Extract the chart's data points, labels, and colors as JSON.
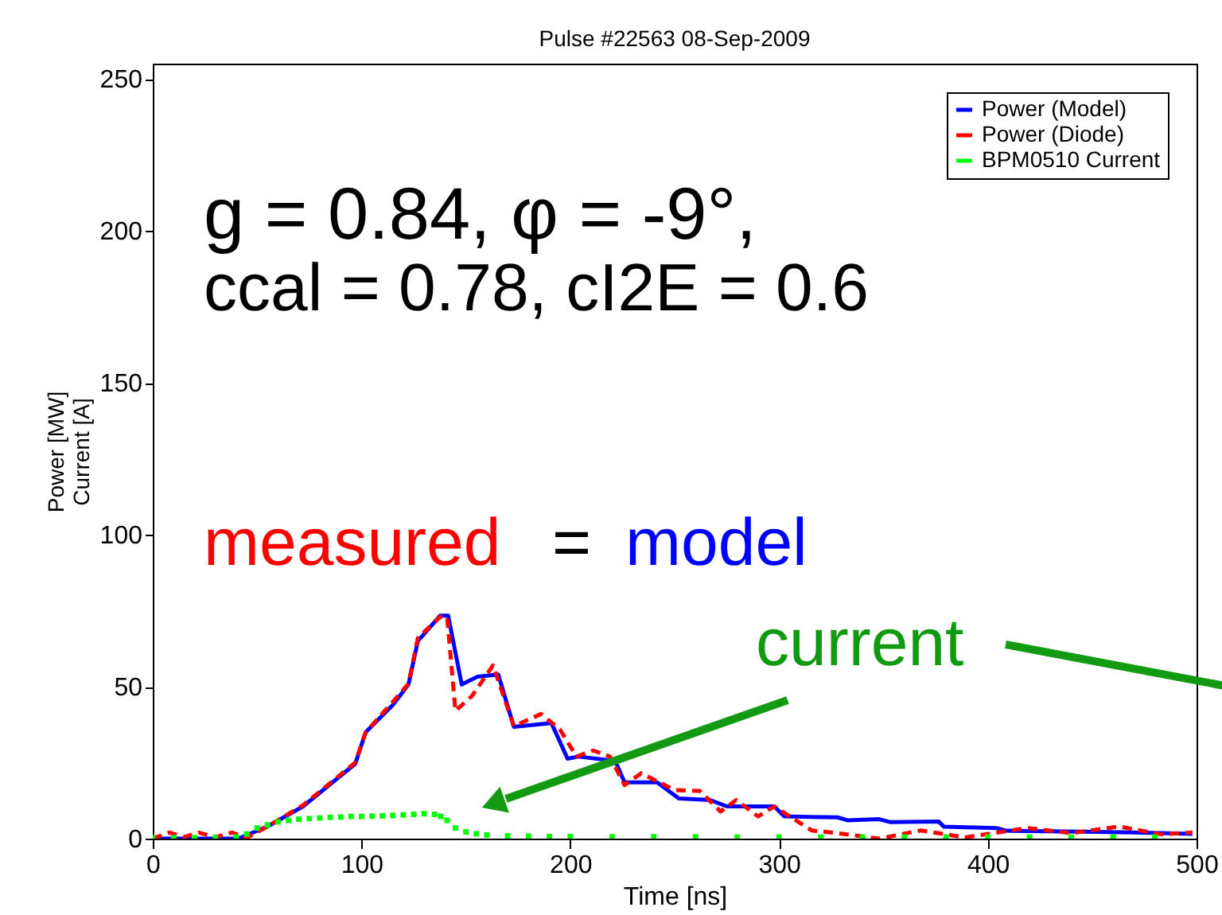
{
  "chart_data": {
    "type": "line",
    "title": "Pulse #22563 08-Sep-2009",
    "xlabel": "Time [ns]",
    "ylabel": "Power [MW]\nCurrent [A]",
    "xlim": [
      0,
      500
    ],
    "xticks": [
      0,
      100,
      200,
      300,
      400,
      500
    ],
    "ylim": [
      0,
      255
    ],
    "yticks": [
      0,
      50,
      100,
      150,
      200,
      250
    ],
    "grid": false,
    "legend": "top right",
    "marker": "none",
    "annotations": [
      "g = 0.84, φ = -9°,",
      "ccal = 0.78, cI2E = 0.6",
      "measured",
      "=",
      "model",
      "current"
    ],
    "series": [
      {
        "name": "Power (Model)",
        "color": "#0000ff",
        "line_style": "solid",
        "x": [
          0,
          41,
          55,
          72,
          97,
          102,
          115,
          122.5,
          127,
          137.7,
          141.5,
          148,
          155.5,
          165.5,
          173,
          191,
          198.7,
          204,
          221.5,
          226,
          241.6,
          252,
          267,
          275,
          297.7,
          302.6,
          328,
          333,
          348,
          353.5,
          376.5,
          379,
          404,
          409,
          445,
          470,
          498
        ],
        "values": [
          0,
          0,
          4,
          10.6,
          24.6,
          35,
          44,
          50.7,
          65,
          73.4,
          73.4,
          50.7,
          53.3,
          54,
          36.8,
          38,
          26.3,
          27,
          25.6,
          18.5,
          18.5,
          13.2,
          12.7,
          10.6,
          10.6,
          7.3,
          7,
          6,
          6.4,
          5.4,
          5.6,
          3.9,
          3.5,
          2.6,
          2.3,
          2,
          1.6
        ]
      },
      {
        "name": "Power (Diode)",
        "color": "#ff0000",
        "line_style": "dashed",
        "x": [
          0,
          8,
          15,
          22,
          30,
          38,
          45,
          55,
          72,
          97,
          102,
          115,
          122.5,
          127,
          137.7,
          141,
          145,
          153,
          163,
          173,
          186,
          195,
          203,
          211,
          219,
          226,
          234,
          250,
          262,
          272,
          279.5,
          290,
          297.7,
          315.6,
          328,
          348,
          368,
          389,
          419,
          440,
          463,
          483,
          498
        ],
        "values": [
          0,
          2,
          0.5,
          2,
          0.5,
          2,
          0.3,
          4,
          11,
          25,
          35,
          45,
          51,
          66,
          73,
          73,
          42,
          47,
          57,
          37,
          41,
          36,
          27,
          29,
          27,
          17.6,
          21.5,
          16,
          15.7,
          8.9,
          12.7,
          7.3,
          10.6,
          2.7,
          1.8,
          0,
          2.7,
          0.4,
          3.5,
          1.8,
          4,
          1.4,
          2
        ]
      },
      {
        "name": "BPM0510 Current",
        "color": "#00ff00",
        "type": "scatter",
        "marker": "square",
        "x": [
          0,
          10,
          20,
          30,
          40,
          45,
          50,
          55,
          60,
          65,
          70,
          75,
          80,
          85,
          90,
          95,
          100,
          105,
          110,
          115,
          120,
          125,
          130,
          135,
          138,
          141,
          145,
          150,
          155,
          160,
          170,
          180,
          190,
          200,
          220,
          240,
          260,
          280,
          300,
          320,
          340,
          360,
          380,
          400,
          420,
          440,
          460,
          480
        ],
        "values": [
          0.3,
          0.3,
          0.3,
          0.3,
          0.5,
          1.5,
          3.5,
          4.5,
          5.5,
          6,
          6.4,
          6.6,
          6.8,
          7,
          7.1,
          7.3,
          7.3,
          7.4,
          7.5,
          7.6,
          7.8,
          8,
          8.2,
          8,
          7.3,
          6,
          3.5,
          2.2,
          1.6,
          1.2,
          0.9,
          0.8,
          0.7,
          0.7,
          0.6,
          0.6,
          0.6,
          0.5,
          0.5,
          0.5,
          0.5,
          0.5,
          0.5,
          0.5,
          0.5,
          0.5,
          0.5,
          0.5
        ]
      }
    ]
  }
}
